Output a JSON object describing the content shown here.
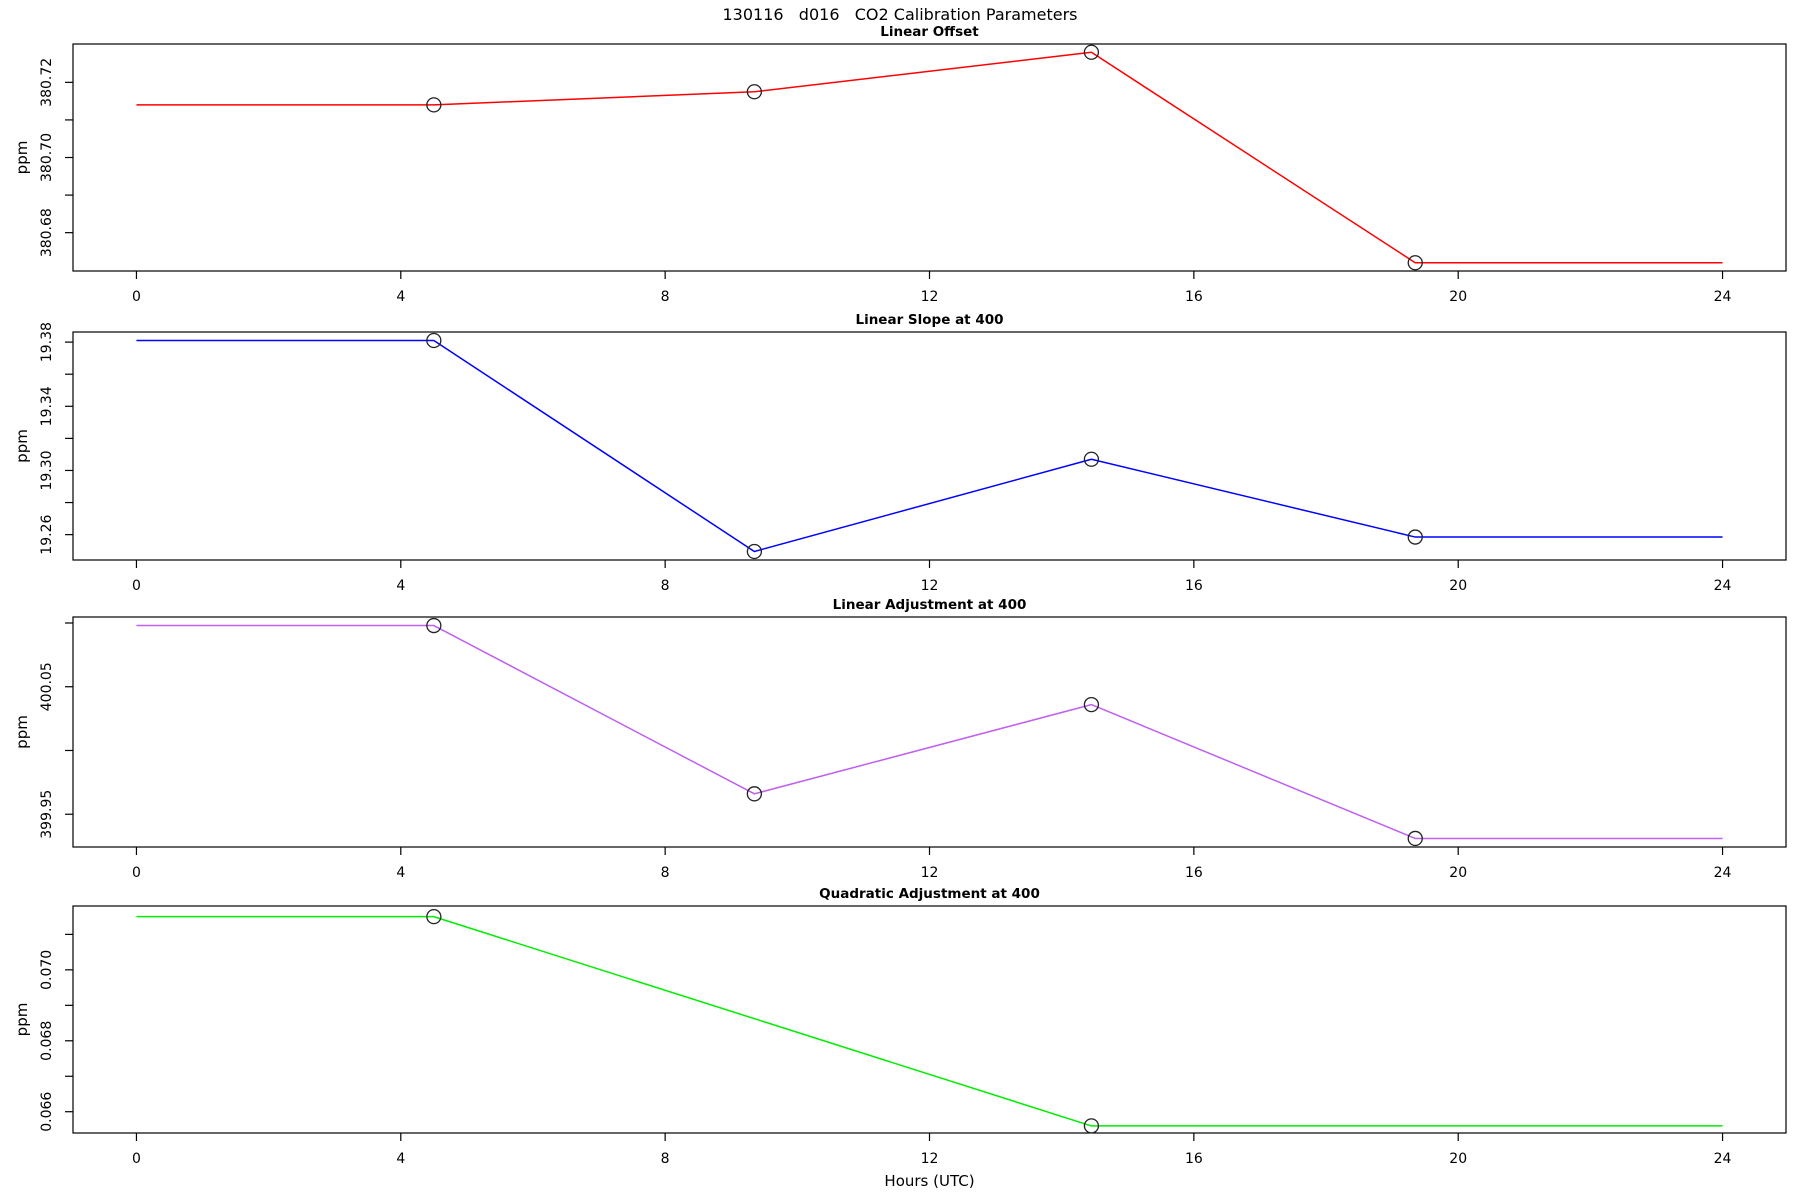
{
  "header": {
    "title": "130116   d016   CO2 Calibration Parameters"
  },
  "chart_data": {
    "type": "line",
    "title": "130116   d016   CO2 Calibration Parameters",
    "xlabel": "Hours (UTC)",
    "x_ticks": [
      0,
      4,
      8,
      12,
      16,
      20,
      24
    ],
    "xlim": [
      -0.96,
      24.96
    ],
    "x_range_hours": [
      0,
      24
    ],
    "marker": "open-circle",
    "panels": [
      {
        "title": "Linear Offset",
        "ylabel": "ppm",
        "color": "#ff0000",
        "ylim": [
          380.6698,
          380.7302
        ],
        "yticks": [
          {
            "v": 380.68,
            "label": "380.68"
          },
          {
            "v": 380.69,
            "label": ""
          },
          {
            "v": 380.7,
            "label": "380.70"
          },
          {
            "v": 380.71,
            "label": ""
          },
          {
            "v": 380.72,
            "label": "380.72"
          }
        ],
        "points": [
          {
            "x": 4.5,
            "y": 380.714
          },
          {
            "x": 9.35,
            "y": 380.7175
          },
          {
            "x": 14.45,
            "y": 380.728
          },
          {
            "x": 19.35,
            "y": 380.672
          }
        ]
      },
      {
        "title": "Linear Slope at 400",
        "ylabel": "ppm",
        "color": "#0000ff",
        "ylim": [
          19.2442,
          19.3863
        ],
        "yticks": [
          {
            "v": 19.26,
            "label": "19.26"
          },
          {
            "v": 19.28,
            "label": ""
          },
          {
            "v": 19.3,
            "label": "19.30"
          },
          {
            "v": 19.32,
            "label": ""
          },
          {
            "v": 19.34,
            "label": "19.34"
          },
          {
            "v": 19.36,
            "label": ""
          },
          {
            "v": 19.38,
            "label": "19.38"
          }
        ],
        "points": [
          {
            "x": 4.5,
            "y": 19.381
          },
          {
            "x": 9.35,
            "y": 19.2495
          },
          {
            "x": 14.45,
            "y": 19.307
          },
          {
            "x": 19.35,
            "y": 19.2585
          }
        ]
      },
      {
        "title": "Linear Adjustment at 400",
        "ylabel": "ppm",
        "color": "#c05ff0",
        "ylim": [
          399.9243,
          400.1047
        ],
        "yticks": [
          {
            "v": 399.95,
            "label": "399.95"
          },
          {
            "v": 400.0,
            "label": ""
          },
          {
            "v": 400.05,
            "label": "400.05"
          },
          {
            "v": 400.1,
            "label": ""
          }
        ],
        "points": [
          {
            "x": 4.5,
            "y": 400.098
          },
          {
            "x": 9.35,
            "y": 399.966
          },
          {
            "x": 14.45,
            "y": 400.036
          },
          {
            "x": 19.35,
            "y": 399.931
          }
        ]
      },
      {
        "title": "Quadratic Adjustment at 400",
        "ylabel": "ppm",
        "color": "#00ee00",
        "ylim": [
          0.0654,
          0.0718
        ],
        "yticks": [
          {
            "v": 0.066,
            "label": "0.066"
          },
          {
            "v": 0.067,
            "label": ""
          },
          {
            "v": 0.068,
            "label": "0.068"
          },
          {
            "v": 0.069,
            "label": ""
          },
          {
            "v": 0.07,
            "label": "0.070"
          },
          {
            "v": 0.071,
            "label": ""
          }
        ],
        "points": [
          {
            "x": 4.5,
            "y": 0.0715
          },
          {
            "x": 14.45,
            "y": 0.0656
          }
        ]
      }
    ]
  }
}
